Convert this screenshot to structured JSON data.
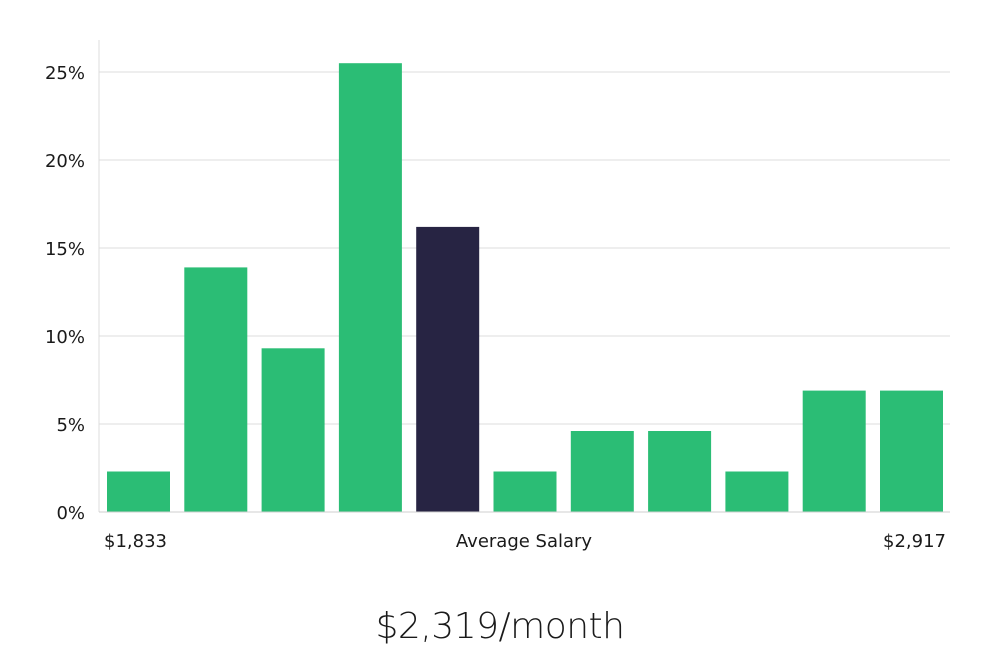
{
  "chart_data": {
    "type": "bar",
    "ylim": [
      0,
      27
    ],
    "yticks": [
      0,
      5,
      10,
      15,
      20,
      25
    ],
    "ytick_labels": [
      "0%",
      "5%",
      "10%",
      "15%",
      "20%",
      "25%"
    ],
    "values": [
      2.3,
      13.9,
      9.3,
      25.5,
      16.2,
      2.3,
      4.6,
      4.6,
      2.3,
      6.9,
      6.9
    ],
    "highlight_index": 4,
    "x_labels": {
      "left": "$1,833",
      "center": "Average Salary",
      "right": "$2,917"
    },
    "grid": true,
    "colors": {
      "bar": "#2bbd75",
      "highlight": "#272443",
      "grid": "#dcdcdc"
    }
  },
  "summary": {
    "average_salary": "$2,319/month"
  }
}
